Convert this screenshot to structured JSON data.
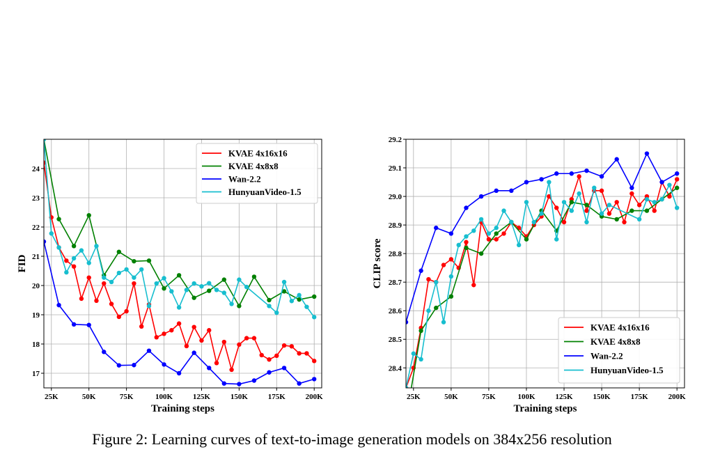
{
  "caption": "Figure 2: Learning curves of text-to-image generation models on 384x256 resolution",
  "chart_data": [
    {
      "type": "line",
      "xlabel": "Training steps",
      "ylabel": "FID",
      "xlim": [
        20000,
        205000
      ],
      "ylim": [
        16.5,
        25.0
      ],
      "xticks": [
        25000,
        50000,
        75000,
        100000,
        125000,
        150000,
        175000,
        200000
      ],
      "xtick_labels": [
        "25K",
        "50K",
        "75K",
        "100K",
        "125K",
        "150K",
        "175K",
        "200K"
      ],
      "yticks": [
        17,
        18,
        19,
        20,
        21,
        22,
        23,
        24
      ],
      "ytick_labels": [
        "17",
        "18",
        "19",
        "20",
        "21",
        "22",
        "23",
        "24"
      ],
      "grid": true,
      "legend_position": "top-right",
      "series": [
        {
          "name": "KVAE 4x16x16",
          "color": "#ff0000",
          "points": [
            [
              20000,
              24.2
            ],
            [
              25000,
              22.33
            ],
            [
              30000,
              21.3
            ],
            [
              35000,
              20.85
            ],
            [
              40000,
              20.65
            ],
            [
              45000,
              19.55
            ],
            [
              50000,
              20.27
            ],
            [
              55000,
              19.48
            ],
            [
              60000,
              20.07
            ],
            [
              65000,
              19.37
            ],
            [
              70000,
              18.93
            ],
            [
              75000,
              19.12
            ],
            [
              80000,
              20.07
            ],
            [
              85000,
              18.6
            ],
            [
              90000,
              19.35
            ],
            [
              95000,
              18.23
            ],
            [
              100000,
              18.35
            ],
            [
              105000,
              18.47
            ],
            [
              110000,
              18.7
            ],
            [
              115000,
              17.93
            ],
            [
              120000,
              18.58
            ],
            [
              125000,
              18.12
            ],
            [
              130000,
              18.47
            ],
            [
              135000,
              17.35
            ],
            [
              140000,
              18.07
            ],
            [
              145000,
              17.12
            ],
            [
              150000,
              17.98
            ],
            [
              155000,
              18.2
            ],
            [
              160000,
              18.2
            ],
            [
              165000,
              17.62
            ],
            [
              170000,
              17.47
            ],
            [
              175000,
              17.6
            ],
            [
              180000,
              17.95
            ],
            [
              185000,
              17.92
            ],
            [
              190000,
              17.68
            ],
            [
              195000,
              17.68
            ],
            [
              200000,
              17.42
            ]
          ]
        },
        {
          "name": "KVAE 4x8x8",
          "color": "#008000",
          "points": [
            [
              20000,
              25.0
            ],
            [
              30000,
              22.27
            ],
            [
              40000,
              21.35
            ],
            [
              50000,
              22.4
            ],
            [
              60000,
              20.35
            ],
            [
              70000,
              21.15
            ],
            [
              80000,
              20.83
            ],
            [
              90000,
              20.85
            ],
            [
              100000,
              19.9
            ],
            [
              110000,
              20.35
            ],
            [
              120000,
              19.58
            ],
            [
              130000,
              19.82
            ],
            [
              140000,
              20.2
            ],
            [
              150000,
              19.3
            ],
            [
              160000,
              20.3
            ],
            [
              170000,
              19.5
            ],
            [
              180000,
              19.8
            ],
            [
              190000,
              19.52
            ],
            [
              200000,
              19.62
            ]
          ]
        },
        {
          "name": "Wan-2.2",
          "color": "#0000ff",
          "points": [
            [
              20000,
              21.5
            ],
            [
              30000,
              19.33
            ],
            [
              40000,
              18.67
            ],
            [
              50000,
              18.65
            ],
            [
              60000,
              17.73
            ],
            [
              70000,
              17.27
            ],
            [
              80000,
              17.28
            ],
            [
              90000,
              17.77
            ],
            [
              100000,
              17.3
            ],
            [
              110000,
              17.0
            ],
            [
              120000,
              17.7
            ],
            [
              130000,
              17.18
            ],
            [
              140000,
              16.65
            ],
            [
              150000,
              16.63
            ],
            [
              160000,
              16.75
            ],
            [
              170000,
              17.03
            ],
            [
              180000,
              17.18
            ],
            [
              190000,
              16.65
            ],
            [
              200000,
              16.8
            ]
          ]
        },
        {
          "name": "HunyuanVideo-1.5",
          "color": "#17becf",
          "points": [
            [
              20000,
              25.0
            ],
            [
              25000,
              21.78
            ],
            [
              30000,
              21.3
            ],
            [
              35000,
              20.45
            ],
            [
              40000,
              20.93
            ],
            [
              45000,
              21.2
            ],
            [
              50000,
              20.77
            ],
            [
              55000,
              21.35
            ],
            [
              60000,
              20.27
            ],
            [
              65000,
              20.12
            ],
            [
              70000,
              20.43
            ],
            [
              75000,
              20.55
            ],
            [
              80000,
              20.27
            ],
            [
              85000,
              20.55
            ],
            [
              90000,
              19.3
            ],
            [
              95000,
              20.07
            ],
            [
              100000,
              20.25
            ],
            [
              105000,
              19.8
            ],
            [
              110000,
              19.25
            ],
            [
              115000,
              19.85
            ],
            [
              120000,
              20.07
            ],
            [
              125000,
              19.97
            ],
            [
              130000,
              20.08
            ],
            [
              135000,
              19.85
            ],
            [
              140000,
              19.75
            ],
            [
              145000,
              19.37
            ],
            [
              150000,
              20.2
            ],
            [
              155000,
              19.95
            ],
            [
              170000,
              19.3
            ],
            [
              175000,
              19.07
            ],
            [
              180000,
              20.12
            ],
            [
              185000,
              19.47
            ],
            [
              190000,
              19.67
            ],
            [
              195000,
              19.27
            ],
            [
              200000,
              18.92
            ]
          ]
        }
      ]
    },
    {
      "type": "line",
      "xlabel": "Training steps",
      "ylabel": "CLIP score",
      "xlim": [
        20000,
        205000
      ],
      "ylim": [
        28.33,
        29.2
      ],
      "xticks": [
        25000,
        50000,
        75000,
        100000,
        125000,
        150000,
        175000,
        200000
      ],
      "xtick_labels": [
        "25K",
        "50K",
        "75K",
        "100K",
        "125K",
        "150K",
        "175K",
        "200K"
      ],
      "yticks": [
        28.4,
        28.5,
        28.6,
        28.7,
        28.8,
        28.9,
        29.0,
        29.1,
        29.2
      ],
      "ytick_labels": [
        "28.4",
        "28.5",
        "28.6",
        "28.7",
        "28.8",
        "28.9",
        "29.0",
        "29.1",
        "29.2"
      ],
      "grid": true,
      "legend_position": "bottom-right",
      "series": [
        {
          "name": "KVAE 4x16x16",
          "color": "#ff0000",
          "points": [
            [
              20000,
              28.33
            ],
            [
              25000,
              28.4
            ],
            [
              30000,
              28.54
            ],
            [
              35000,
              28.71
            ],
            [
              40000,
              28.7
            ],
            [
              45000,
              28.76
            ],
            [
              50000,
              28.78
            ],
            [
              55000,
              28.75
            ],
            [
              60000,
              28.84
            ],
            [
              65000,
              28.69
            ],
            [
              70000,
              28.91
            ],
            [
              75000,
              28.85
            ],
            [
              80000,
              28.85
            ],
            [
              85000,
              28.87
            ],
            [
              90000,
              28.91
            ],
            [
              95000,
              28.89
            ],
            [
              100000,
              28.86
            ],
            [
              105000,
              28.9
            ],
            [
              110000,
              28.93
            ],
            [
              115000,
              29.0
            ],
            [
              120000,
              28.96
            ],
            [
              125000,
              28.91
            ],
            [
              130000,
              28.99
            ],
            [
              135000,
              29.07
            ],
            [
              140000,
              28.95
            ],
            [
              145000,
              29.02
            ],
            [
              150000,
              29.02
            ],
            [
              155000,
              28.94
            ],
            [
              160000,
              28.98
            ],
            [
              165000,
              28.91
            ],
            [
              170000,
              29.01
            ],
            [
              175000,
              28.97
            ],
            [
              180000,
              29.0
            ],
            [
              185000,
              28.95
            ],
            [
              190000,
              29.05
            ],
            [
              195000,
              29.0
            ],
            [
              200000,
              29.06
            ]
          ]
        },
        {
          "name": "KVAE 4x8x8",
          "color": "#008000",
          "points": [
            [
              20000,
              28.22
            ],
            [
              30000,
              28.53
            ],
            [
              40000,
              28.61
            ],
            [
              50000,
              28.65
            ],
            [
              60000,
              28.82
            ],
            [
              70000,
              28.8
            ],
            [
              80000,
              28.87
            ],
            [
              90000,
              28.91
            ],
            [
              100000,
              28.85
            ],
            [
              110000,
              28.95
            ],
            [
              120000,
              28.88
            ],
            [
              130000,
              28.98
            ],
            [
              140000,
              28.97
            ],
            [
              150000,
              28.93
            ],
            [
              160000,
              28.92
            ],
            [
              170000,
              28.95
            ],
            [
              180000,
              28.95
            ],
            [
              190000,
              28.99
            ],
            [
              200000,
              29.03
            ]
          ]
        },
        {
          "name": "Wan-2.2",
          "color": "#0000ff",
          "points": [
            [
              20000,
              28.56
            ],
            [
              30000,
              28.74
            ],
            [
              40000,
              28.89
            ],
            [
              50000,
              28.87
            ],
            [
              60000,
              28.96
            ],
            [
              70000,
              29.0
            ],
            [
              80000,
              29.02
            ],
            [
              90000,
              29.02
            ],
            [
              100000,
              29.05
            ],
            [
              110000,
              29.06
            ],
            [
              120000,
              29.08
            ],
            [
              130000,
              29.08
            ],
            [
              140000,
              29.09
            ],
            [
              150000,
              29.07
            ],
            [
              160000,
              29.13
            ],
            [
              170000,
              29.03
            ],
            [
              180000,
              29.15
            ],
            [
              190000,
              29.05
            ],
            [
              200000,
              29.08
            ]
          ]
        },
        {
          "name": "HunyuanVideo-1.5",
          "color": "#17becf",
          "points": [
            [
              20000,
              28.33
            ],
            [
              25000,
              28.45
            ],
            [
              30000,
              28.43
            ],
            [
              35000,
              28.6
            ],
            [
              40000,
              28.7
            ],
            [
              45000,
              28.56
            ],
            [
              50000,
              28.72
            ],
            [
              55000,
              28.83
            ],
            [
              60000,
              28.86
            ],
            [
              65000,
              28.88
            ],
            [
              70000,
              28.92
            ],
            [
              75000,
              28.87
            ],
            [
              80000,
              28.89
            ],
            [
              85000,
              28.95
            ],
            [
              90000,
              28.91
            ],
            [
              95000,
              28.83
            ],
            [
              100000,
              28.98
            ],
            [
              105000,
              28.91
            ],
            [
              110000,
              28.94
            ],
            [
              115000,
              29.05
            ],
            [
              120000,
              28.85
            ],
            [
              125000,
              28.98
            ],
            [
              130000,
              28.95
            ],
            [
              135000,
              29.01
            ],
            [
              140000,
              28.91
            ],
            [
              145000,
              29.03
            ],
            [
              150000,
              28.94
            ],
            [
              155000,
              28.97
            ],
            [
              175000,
              28.92
            ],
            [
              180000,
              28.99
            ],
            [
              185000,
              28.98
            ],
            [
              190000,
              28.99
            ],
            [
              195000,
              29.04
            ],
            [
              200000,
              28.96
            ]
          ]
        }
      ]
    }
  ]
}
